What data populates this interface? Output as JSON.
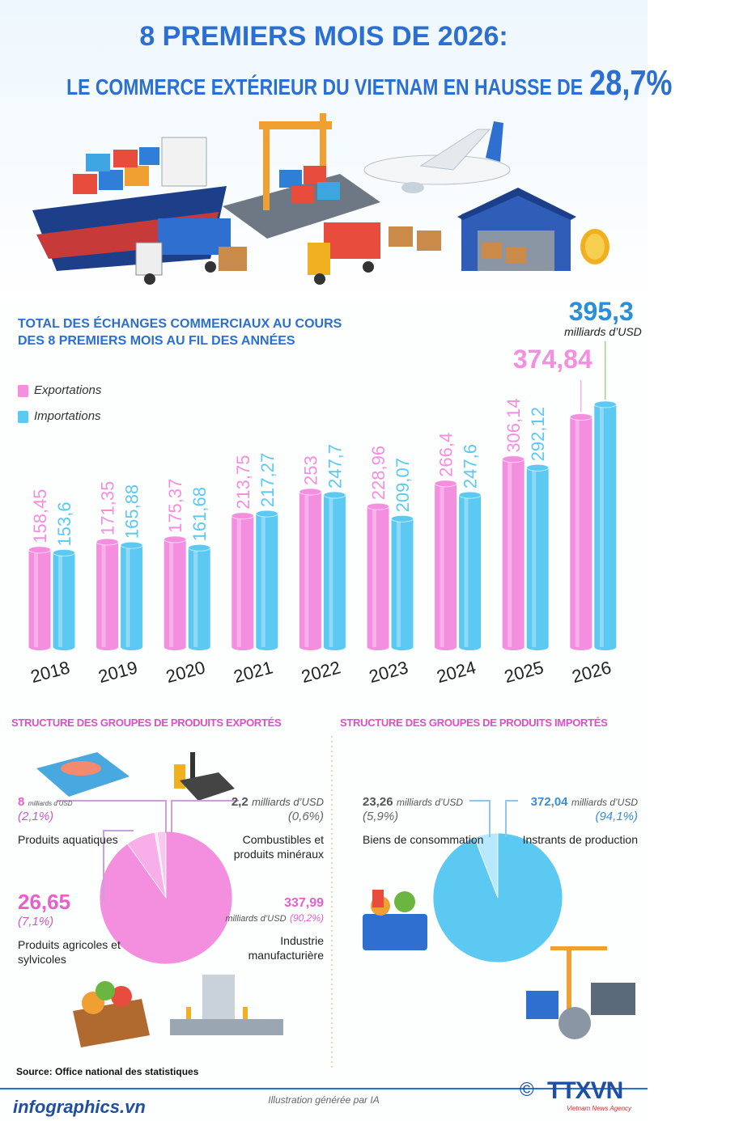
{
  "header": {
    "title_line1": "8 PREMIERS MOIS DE 2026:",
    "title_line2": "LE COMMERCE EXTÉRIEUR DU VIETNAM EN HAUSSE DE",
    "title_highlight": "28,7%"
  },
  "chart_data": [
    {
      "type": "bar",
      "title": "TOTAL DES ÉCHANGES COMMERCIAUX AU COURS DES 8 PREMIERS MOIS AU FIL DES ANNÉES",
      "categories": [
        "2018",
        "2019",
        "2020",
        "2021",
        "2022",
        "2023",
        "2024",
        "2025",
        "2026"
      ],
      "series": [
        {
          "name": "Exportations",
          "color": "#f48fe0",
          "values": [
            158.45,
            171.35,
            175.37,
            213.75,
            253,
            228.96,
            266.4,
            306.14,
            374.84
          ],
          "value_labels": [
            "158,45",
            "171,35",
            "175,37",
            "213,75",
            "253",
            "228,96",
            "266,4",
            "306,14",
            "374,84"
          ]
        },
        {
          "name": "Importations",
          "color": "#5cc9f2",
          "values": [
            153.6,
            165.88,
            161.68,
            217.27,
            247.7,
            209.07,
            247.6,
            292.12,
            395.3
          ],
          "value_labels": [
            "153,6",
            "165,88",
            "161,68",
            "217,27",
            "247,7",
            "209,07",
            "247,6",
            "292,12",
            "395,3"
          ]
        }
      ],
      "annotation": "milliards d’USD",
      "legend": "top-left"
    },
    {
      "type": "pie",
      "title": "STRUCTURE DES GROUPES DE PRODUITS EXPORTÉS",
      "categories": [
        "Produits aquatiques",
        "Combustibles et produits minéraux",
        "Produits agricoles et sylvicoles",
        "Industrie manufacturière"
      ],
      "values": [
        8,
        2.2,
        26.65,
        337.99
      ],
      "value_labels": [
        "8",
        "2,2",
        "26,65",
        "337,99"
      ],
      "percents": [
        2.1,
        0.6,
        7.1,
        90.2
      ],
      "percent_labels": [
        "(2,1%)",
        "(0,6%)",
        "(7,1%)",
        "(90,2%)"
      ],
      "unit": "milliards d’USD",
      "colors": [
        "#f9c8ef",
        "#fde0f6",
        "#f7aee9",
        "#f48fe0"
      ]
    },
    {
      "type": "pie",
      "title": "STRUCTURE DES GROUPES DE PRODUITS IMPORTÉS",
      "categories": [
        "Biens de consommation",
        "Instrants de production"
      ],
      "values": [
        23.26,
        372.04
      ],
      "value_labels": [
        "23,26",
        "372,04"
      ],
      "percents": [
        5.9,
        94.1
      ],
      "percent_labels": [
        "(5,9%)",
        "(94,1%)"
      ],
      "unit": "milliards d’USD",
      "colors": [
        "#b8e8fb",
        "#5cc9f2"
      ]
    }
  ],
  "source": "Source: Office national des statistiques",
  "footer": {
    "site": "infographics.vn",
    "credit": "Illustration générée par IA",
    "copyright": "©",
    "logo": "TTXVN",
    "logo_sub": "Vietnam News Agency"
  }
}
